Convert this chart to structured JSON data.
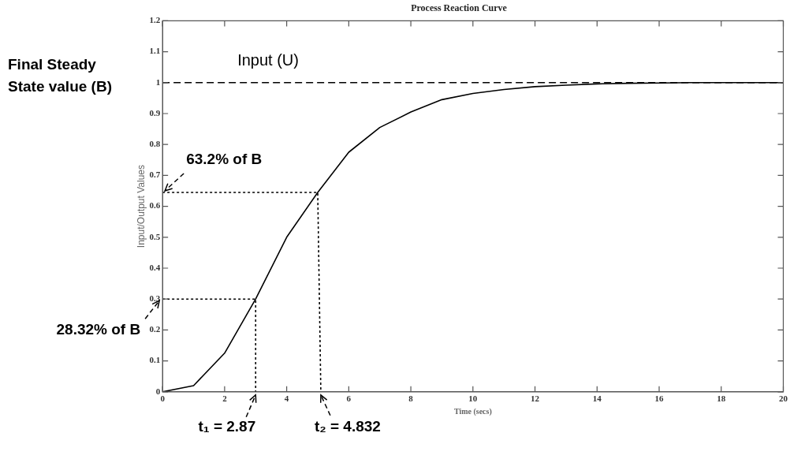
{
  "chart_data": {
    "type": "line",
    "title": "Process Reaction Curve",
    "xlabel": "Time (secs)",
    "ylabel": "Input/Output Values",
    "xlim": [
      0,
      20
    ],
    "xticks": [
      0,
      2,
      4,
      6,
      8,
      10,
      12,
      14,
      16,
      18,
      20
    ],
    "ylim": [
      0,
      1.2
    ],
    "yticks": [
      0,
      0.1,
      0.2,
      0.3,
      0.4,
      0.5,
      0.6,
      0.7,
      0.8,
      0.9,
      1,
      1.1,
      1.2
    ],
    "marker": "none",
    "legend": false,
    "series": [
      {
        "type": "line",
        "color": "#000000",
        "line_style": "solid",
        "x": [
          0,
          1,
          2,
          3,
          4,
          5,
          6,
          7,
          8,
          9,
          10,
          11,
          12,
          13,
          14,
          15,
          16,
          17,
          18,
          19,
          20
        ],
        "values": [
          0,
          0.02,
          0.125,
          0.3,
          0.5,
          0.645,
          0.775,
          0.855,
          0.905,
          0.945,
          0.965,
          0.978,
          0.987,
          0.992,
          0.996,
          0.998,
          0.999,
          1,
          1,
          1,
          1
        ]
      },
      {
        "type": "line",
        "name": "Input (U)",
        "color": "#000000",
        "line_style": "dashed",
        "x": [
          0,
          20
        ],
        "values": [
          1,
          1
        ]
      },
      {
        "type": "line",
        "color": "#000000",
        "line_style": "dotted",
        "x": [
          0,
          3,
          3
        ],
        "values": [
          0.3,
          0.3,
          0
        ]
      },
      {
        "type": "line",
        "color": "#000000",
        "line_style": "dotted",
        "x": [
          0,
          5,
          5.1
        ],
        "values": [
          0.645,
          0.645,
          0
        ]
      }
    ],
    "annotations": [
      "Final Steady State value (B)",
      {
        "text": "63.2% of B",
        "x": 0,
        "y": 0.645
      },
      {
        "text": "28.32% of B",
        "x": 0,
        "y": 0.3
      },
      {
        "text": "t₁ = 2.87",
        "x": 3,
        "y": 0
      },
      {
        "text": "t₂ = 4.832",
        "x": 5.1,
        "y": 0
      }
    ]
  }
}
